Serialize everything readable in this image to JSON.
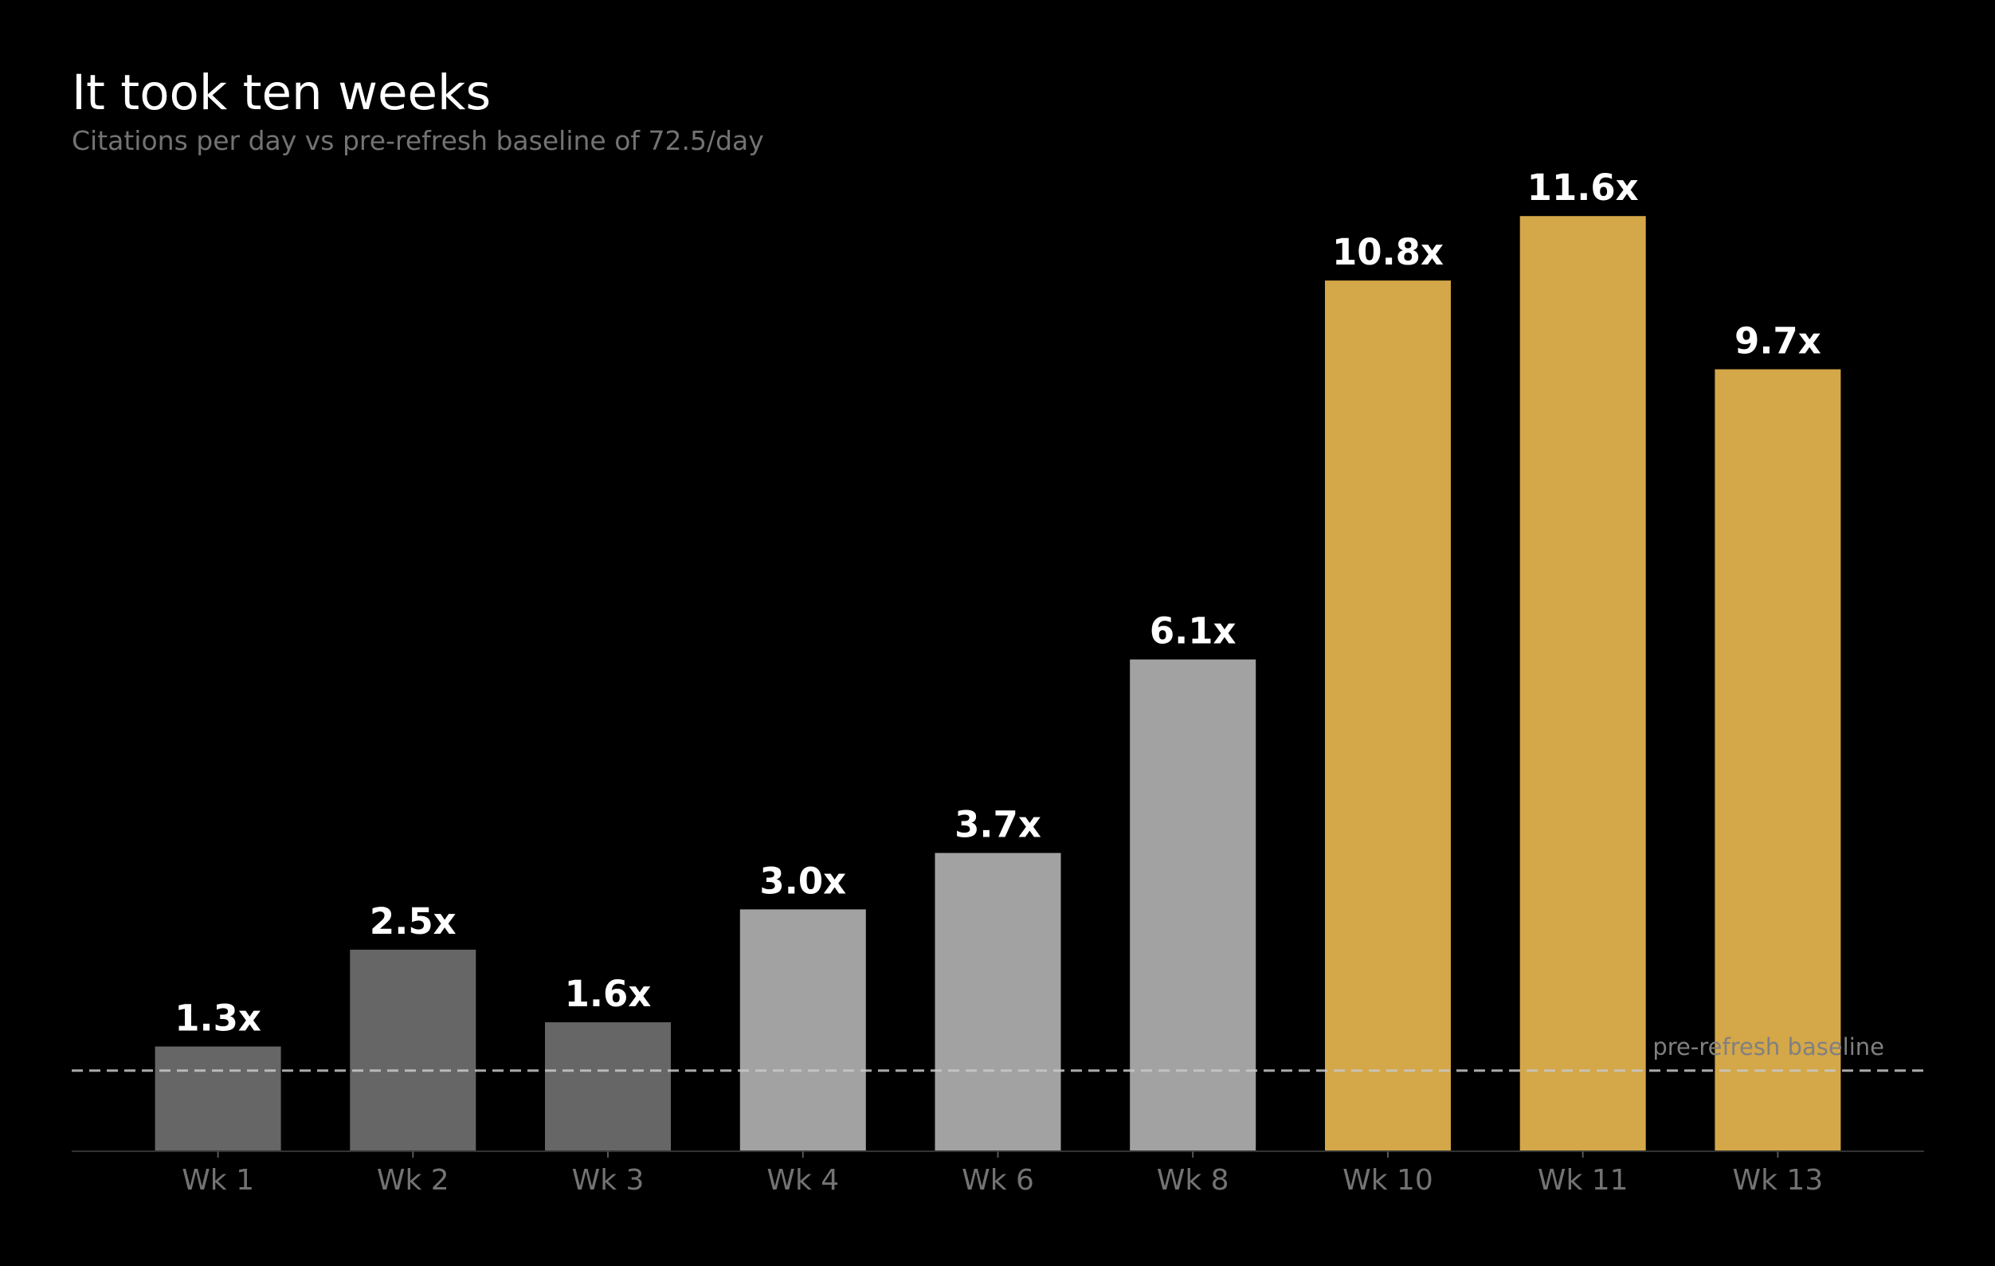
{
  "chart_data": {
    "type": "bar",
    "title": "It took ten weeks",
    "subtitle": "Citations per day vs pre-refresh baseline of 72.5/day",
    "xlabel": "",
    "ylabel": "",
    "categories": [
      "Wk 1",
      "Wk 2",
      "Wk 3",
      "Wk 4",
      "Wk 6",
      "Wk 8",
      "Wk 10",
      "Wk 11",
      "Wk 13"
    ],
    "values": [
      1.3,
      2.5,
      1.6,
      3.0,
      3.7,
      6.1,
      10.8,
      11.6,
      9.7
    ],
    "value_labels": [
      "1.3x",
      "2.5x",
      "1.6x",
      "3.0x",
      "3.7x",
      "6.1x",
      "10.8x",
      "11.6x",
      "9.7x"
    ],
    "bar_colors": [
      "#666666",
      "#666666",
      "#666666",
      "#a2a2a2",
      "#a2a2a2",
      "#a2a2a2",
      "#d4a748",
      "#d4a748",
      "#d4a748"
    ],
    "ylim": [
      0,
      12.6
    ],
    "y_axis_visible": false,
    "grid": false,
    "legend": "none",
    "reference_line": {
      "value": 1.0,
      "label": "pre-refresh baseline",
      "style": "dashed",
      "color": "#c8c8c8"
    },
    "colors": {
      "background": "#000000",
      "text": "#ffffff",
      "muted_text": "#737373",
      "axis": "#333333"
    }
  }
}
